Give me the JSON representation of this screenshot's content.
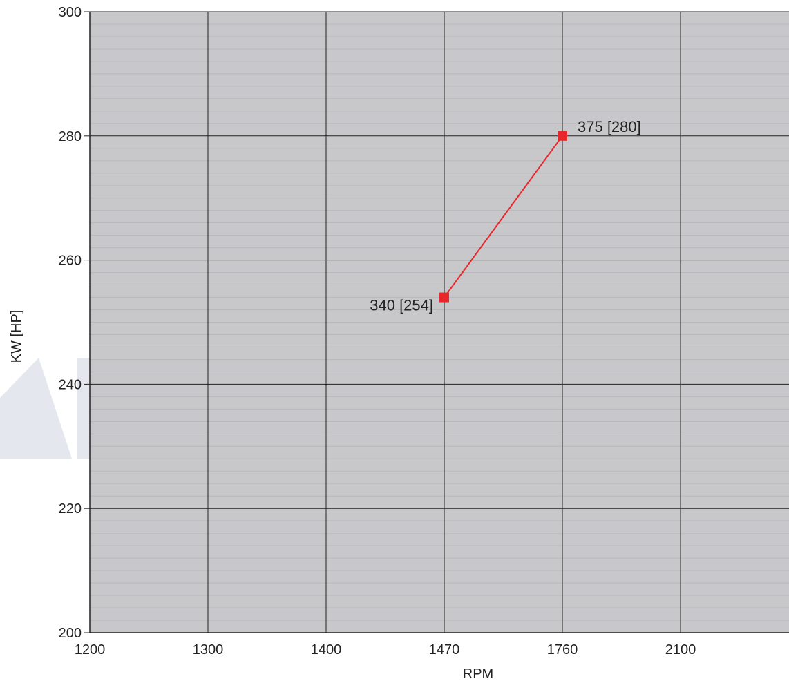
{
  "chart_data": {
    "type": "line",
    "xlabel": "RPM",
    "ylabel": "KW [HP]",
    "x_tick_labels": [
      "1200",
      "1300",
      "1400",
      "1470",
      "1760",
      "2100"
    ],
    "y_ticks": [
      200,
      220,
      240,
      260,
      280,
      300
    ],
    "y_tick_labels": [
      "200",
      "220",
      "240",
      "260",
      "280",
      "300"
    ],
    "ylim": [
      200,
      300
    ],
    "grid": true,
    "series": [
      {
        "x": [
          "1470",
          "1760"
        ],
        "values": [
          254,
          280
        ],
        "labels": [
          "340 [254]",
          "375 [280]"
        ]
      }
    ],
    "colors": {
      "plot_background": "#c8c8cb",
      "grid_major": "#222222",
      "grid_minor": "#b9b9bc",
      "series": "#e8262b",
      "watermark": "#e4e7ee"
    }
  }
}
